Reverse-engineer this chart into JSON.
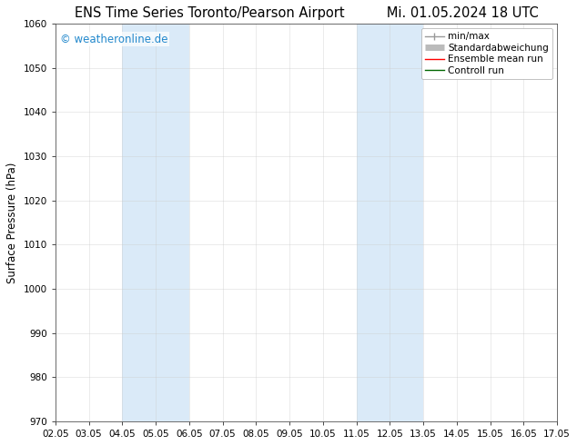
{
  "title_left": "ENS Time Series Toronto/Pearson Airport",
  "title_right": "Mi. 01.05.2024 18 UTC",
  "ylabel": "Surface Pressure (hPa)",
  "ylim": [
    970,
    1060
  ],
  "yticks": [
    970,
    980,
    990,
    1000,
    1010,
    1020,
    1030,
    1040,
    1050,
    1060
  ],
  "xtick_labels": [
    "02.05",
    "03.05",
    "04.05",
    "05.05",
    "06.05",
    "07.05",
    "08.05",
    "09.05",
    "10.05",
    "11.05",
    "12.05",
    "13.05",
    "14.05",
    "15.05",
    "16.05",
    "17.05"
  ],
  "xtick_positions": [
    0,
    1,
    2,
    3,
    4,
    5,
    6,
    7,
    8,
    9,
    10,
    11,
    12,
    13,
    14,
    15
  ],
  "shaded_regions": [
    {
      "x_start": 2,
      "x_end": 4,
      "color": "#daeaf8"
    },
    {
      "x_start": 9,
      "x_end": 11,
      "color": "#daeaf8"
    }
  ],
  "watermark_text": "© weatheronline.de",
  "watermark_color": "#2288cc",
  "background_color": "#ffffff",
  "plot_bg_color": "#ffffff",
  "grid_color": "#cccccc",
  "legend_entries": [
    {
      "label": "min/max",
      "color": "#999999",
      "linewidth": 1.0
    },
    {
      "label": "Standardabweichung",
      "color": "#bbbbbb",
      "linewidth": 5
    },
    {
      "label": "Ensemble mean run",
      "color": "#ff0000",
      "linewidth": 1.0
    },
    {
      "label": "Controll run",
      "color": "#006600",
      "linewidth": 1.0
    }
  ],
  "title_fontsize": 10.5,
  "axis_label_fontsize": 8.5,
  "tick_fontsize": 7.5,
  "legend_fontsize": 7.5,
  "watermark_fontsize": 8.5,
  "fig_width": 6.34,
  "fig_height": 4.9,
  "dpi": 100
}
